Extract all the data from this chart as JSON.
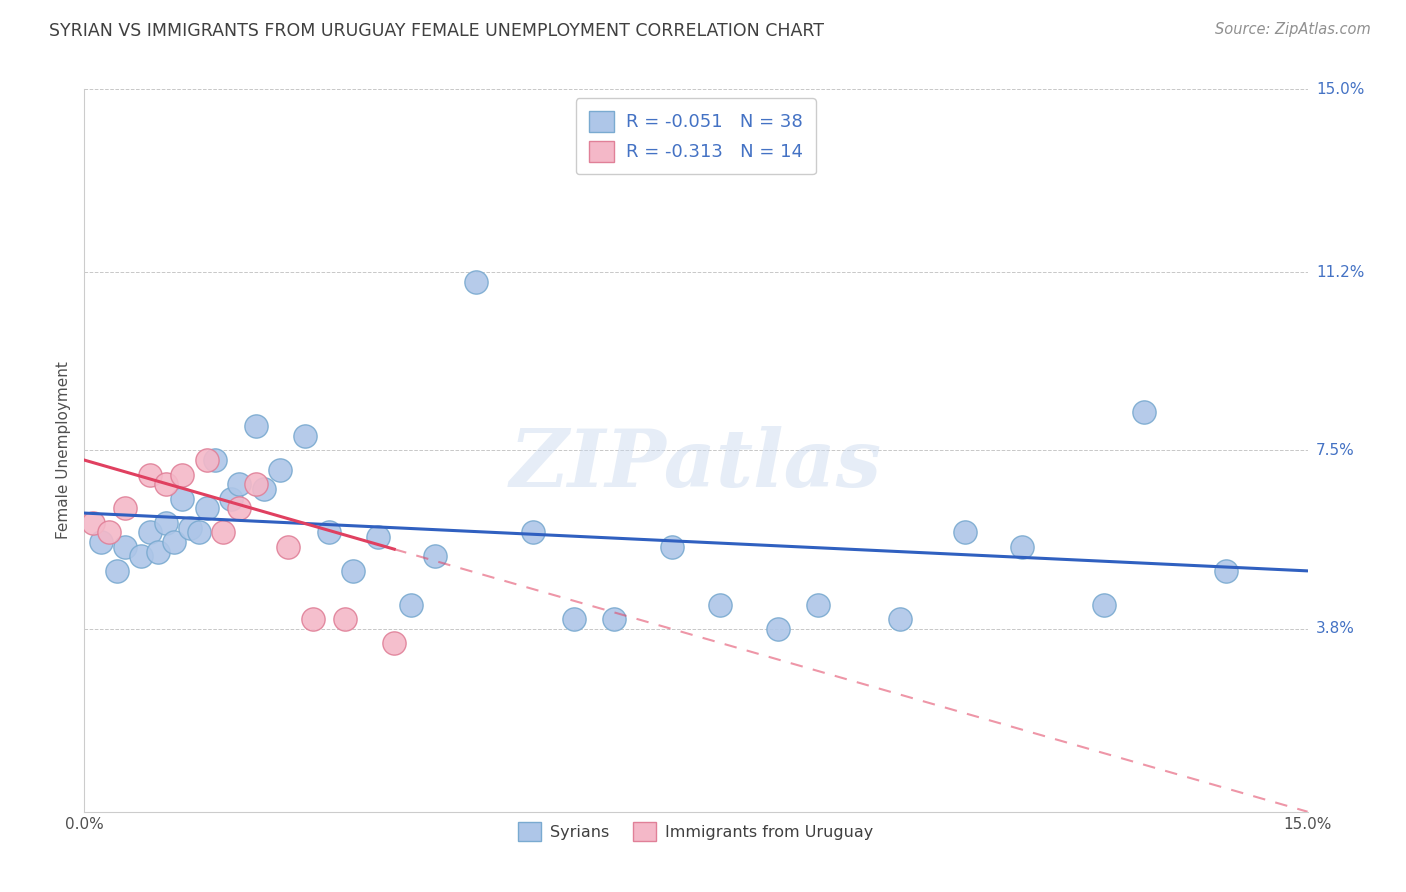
{
  "title": "SYRIAN VS IMMIGRANTS FROM URUGUAY FEMALE UNEMPLOYMENT CORRELATION CHART",
  "source": "Source: ZipAtlas.com",
  "ylabel": "Female Unemployment",
  "xlim": [
    0.0,
    0.15
  ],
  "ylim": [
    0.0,
    0.15
  ],
  "ytick_values": [
    0.0,
    0.038,
    0.075,
    0.112,
    0.15
  ],
  "xtick_values": [
    0.0,
    0.01,
    0.02,
    0.03,
    0.04,
    0.05,
    0.06,
    0.07,
    0.08,
    0.09,
    0.1,
    0.11,
    0.12,
    0.13,
    0.14,
    0.15
  ],
  "syrians_x": [
    0.002,
    0.004,
    0.005,
    0.007,
    0.008,
    0.009,
    0.01,
    0.011,
    0.012,
    0.013,
    0.014,
    0.015,
    0.016,
    0.018,
    0.019,
    0.021,
    0.022,
    0.024,
    0.027,
    0.03,
    0.033,
    0.036,
    0.04,
    0.043,
    0.048,
    0.055,
    0.06,
    0.065,
    0.072,
    0.078,
    0.085,
    0.09,
    0.1,
    0.108,
    0.115,
    0.125,
    0.13,
    0.14
  ],
  "syrians_y": [
    0.056,
    0.05,
    0.055,
    0.053,
    0.058,
    0.054,
    0.06,
    0.056,
    0.065,
    0.059,
    0.058,
    0.063,
    0.073,
    0.065,
    0.068,
    0.08,
    0.067,
    0.071,
    0.078,
    0.058,
    0.05,
    0.057,
    0.043,
    0.053,
    0.11,
    0.058,
    0.04,
    0.04,
    0.055,
    0.043,
    0.038,
    0.043,
    0.04,
    0.058,
    0.055,
    0.043,
    0.083,
    0.05
  ],
  "uruguay_x": [
    0.001,
    0.003,
    0.005,
    0.008,
    0.01,
    0.012,
    0.015,
    0.017,
    0.019,
    0.021,
    0.025,
    0.028,
    0.032,
    0.038
  ],
  "uruguay_y": [
    0.06,
    0.058,
    0.063,
    0.07,
    0.068,
    0.07,
    0.073,
    0.058,
    0.063,
    0.068,
    0.055,
    0.04,
    0.04,
    0.035
  ],
  "syrians_color": "#aec6e8",
  "syrians_edge_color": "#7aaad0",
  "uruguay_color": "#f4b8c8",
  "uruguay_edge_color": "#e08098",
  "trend_syrians_color": "#3060c0",
  "trend_uruguay_color": "#e04060",
  "R_syrians": "-0.051",
  "N_syrians": "38",
  "R_uruguay": "-0.313",
  "N_uruguay": "14",
  "legend_label_syrians": "Syrians",
  "legend_label_uruguay": "Immigrants from Uruguay",
  "watermark": "ZIPatlas",
  "background_color": "#ffffff",
  "grid_color": "#c8c8c8",
  "right_label_color": "#4472c4",
  "title_color": "#404040",
  "source_color": "#909090"
}
